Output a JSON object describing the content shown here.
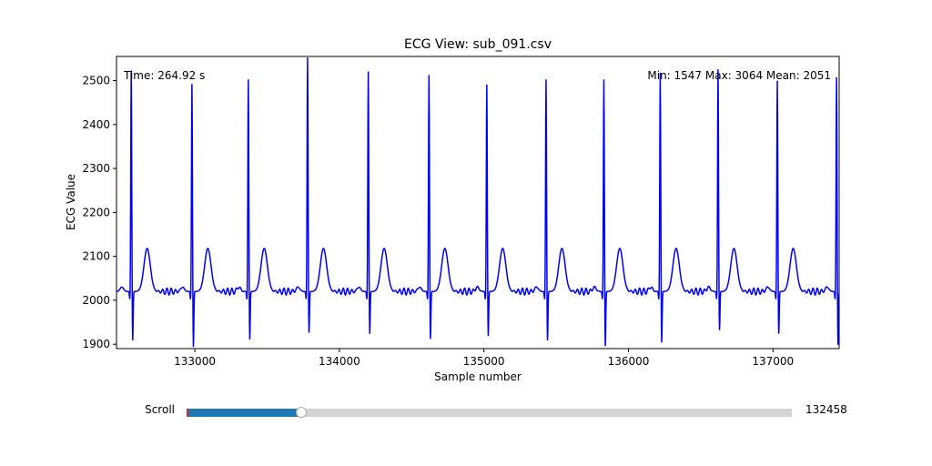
{
  "chart_data": {
    "type": "line",
    "title": "ECG View: sub_091.csv",
    "xlabel": "Sample number",
    "ylabel": "ECG Value",
    "xlim": [
      132458,
      137458
    ],
    "ylim": [
      1890,
      2555
    ],
    "xticks": [
      133000,
      134000,
      135000,
      136000,
      137000
    ],
    "yticks": [
      1900,
      2000,
      2100,
      2200,
      2300,
      2400,
      2500
    ],
    "grid": false,
    "line_color": "#0000ff",
    "beats": [
      {
        "r": 132560,
        "peak": 2525,
        "s": 1905
      },
      {
        "r": 132980,
        "peak": 2495,
        "s": 1890
      },
      {
        "r": 133370,
        "peak": 2505,
        "s": 1907
      },
      {
        "r": 133780,
        "peak": 2555,
        "s": 1922
      },
      {
        "r": 134200,
        "peak": 2523,
        "s": 1920
      },
      {
        "r": 134620,
        "peak": 2515,
        "s": 1908
      },
      {
        "r": 135020,
        "peak": 2493,
        "s": 1915
      },
      {
        "r": 135430,
        "peak": 2505,
        "s": 1905
      },
      {
        "r": 135830,
        "peak": 2505,
        "s": 1892
      },
      {
        "r": 136220,
        "peak": 2520,
        "s": 1900
      },
      {
        "r": 136620,
        "peak": 2528,
        "s": 1928
      },
      {
        "r": 137030,
        "peak": 2502,
        "s": 1920
      },
      {
        "r": 137440,
        "peak": 2510,
        "s": 1895
      }
    ],
    "baseline": 2020,
    "t_wave_height": 2118,
    "annotations": {
      "time": "Time: 264.92 s",
      "stats": "Min: 1547  Max: 3064  Mean: 2051"
    }
  },
  "slider": {
    "label": "Scroll",
    "value": 132458,
    "value_text": "132458",
    "min": 0,
    "max": 700000,
    "fill_color": "#1f77b4"
  }
}
